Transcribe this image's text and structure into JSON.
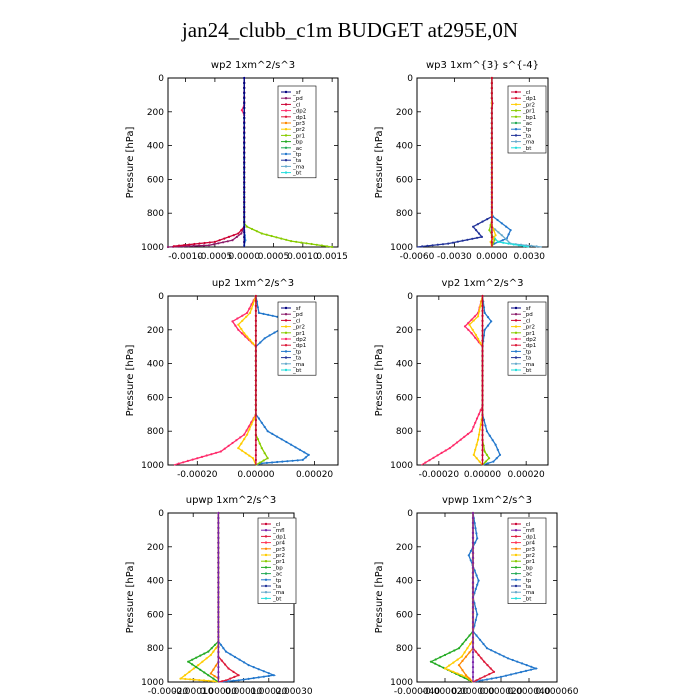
{
  "page": {
    "title": "jan24_clubb_c1m  BUDGET at295E,0N"
  },
  "colors": {
    "_sf": "#000080",
    "_pd": "#8b1a6a",
    "_cl": "#cc0033",
    "_dp2": "#ff2a6a",
    "_dp1": "#dd1a3a",
    "_pr3": "#ff8800",
    "_pr2": "#ffcc00",
    "_pr1": "#88cc00",
    "_bp": "#22aa22",
    "_ac": "#22aa55",
    "_tp": "#2277cc",
    "_ta": "#223399",
    "_ma": "#66aacc",
    "_bt": "#22dddd",
    "_mfl": "#7722aa",
    "_dp3": "#ff1a1a",
    "_pr4": "#ff3355",
    "_bp1": "#88cc00"
  },
  "chart_data": [
    {
      "type": "line",
      "title": "wp2   1xm^2/s^3",
      "ylabel": "Pressure [hPa]",
      "xlim": [
        -0.0013,
        0.0016
      ],
      "ylim": [
        1000,
        0
      ],
      "xticks": [
        -0.001,
        -0.0005,
        0.0,
        0.0005,
        0.001,
        0.0015
      ],
      "xticklabels": [
        "-0.0010",
        "-0.0005",
        "0.0000",
        "0.0005",
        "0.0010",
        "0.0015"
      ],
      "yticks": [
        0,
        200,
        400,
        600,
        800,
        1000
      ],
      "legend": [
        "_sf",
        "_pd",
        "_cl",
        "_dp2",
        "_dp1",
        "_pr3",
        "_pr2",
        "_pr1",
        "_bp",
        "_ac",
        "_tp",
        "_ta",
        "_ma",
        "_bt"
      ],
      "series": [
        {
          "name": "_pd",
          "x": [
            -0.0013,
            -0.0006,
            -0.0002,
            -5e-05,
            0,
            0,
            0
          ],
          "y": [
            1000,
            990,
            960,
            920,
            880,
            500,
            0
          ]
        },
        {
          "name": "_cl",
          "x": [
            -0.0012,
            -0.0005,
            -0.0001,
            0,
            0,
            0
          ],
          "y": [
            995,
            970,
            920,
            880,
            500,
            0
          ]
        },
        {
          "name": "_pr1",
          "x": [
            0.0015,
            0.0008,
            0.0003,
            5e-05,
            0,
            0
          ],
          "y": [
            1000,
            965,
            920,
            880,
            860,
            0
          ]
        },
        {
          "name": "_dp2",
          "x": [
            0,
            0,
            0,
            -4e-05,
            0,
            0,
            0
          ],
          "y": [
            0,
            140,
            160,
            190,
            220,
            260,
            1000
          ]
        },
        {
          "name": "_tp",
          "x": [
            0,
            0,
            0,
            2e-05,
            0,
            0
          ],
          "y": [
            0,
            600,
            900,
            960,
            990,
            1000
          ]
        },
        {
          "name": "_sf",
          "x": [
            0,
            0
          ],
          "y": [
            0,
            1000
          ]
        }
      ]
    },
    {
      "type": "line",
      "title": "wp3   1xm^{3} s^{-4}",
      "ylabel": "Pressure [hPa]",
      "xlim": [
        -0.006,
        0.0045
      ],
      "ylim": [
        1000,
        0
      ],
      "xticks": [
        -0.006,
        -0.003,
        0.0,
        0.003
      ],
      "xticklabels": [
        "-0.0060",
        "-0.0030",
        "0.0000",
        "0.0030"
      ],
      "yticks": [
        0,
        200,
        400,
        600,
        800,
        1000
      ],
      "legend": [
        "_cl",
        "_dp1",
        "_pr2",
        "_pr1",
        "_bp1",
        "_ac",
        "_tp",
        "_ta",
        "_ma",
        "_bt"
      ],
      "series": [
        {
          "name": "_tp",
          "x": [
            0,
            0,
            0.0001,
            0.0015,
            0.0012,
            0.0002,
            0,
            0
          ],
          "y": [
            0,
            800,
            820,
            900,
            950,
            980,
            990,
            1000
          ]
        },
        {
          "name": "_ta",
          "x": [
            0,
            0,
            -0.0015,
            -0.0008,
            -0.0035,
            -0.006
          ],
          "y": [
            0,
            820,
            880,
            940,
            980,
            1000
          ]
        },
        {
          "name": "_ma",
          "x": [
            0,
            0,
            0.0008,
            0.0015,
            0.004
          ],
          "y": [
            0,
            880,
            930,
            980,
            1000
          ]
        },
        {
          "name": "_bt",
          "x": [
            0,
            0,
            0.0005,
            0.003
          ],
          "y": [
            0,
            930,
            970,
            1000
          ]
        },
        {
          "name": "_pr1",
          "x": [
            0,
            0,
            -0.0002,
            0.0002,
            0
          ],
          "y": [
            0,
            840,
            900,
            960,
            1000
          ]
        },
        {
          "name": "_pr2",
          "x": [
            0,
            0,
            0.0003,
            -0.0001,
            0
          ],
          "y": [
            0,
            870,
            930,
            970,
            1000
          ]
        },
        {
          "name": "_cl",
          "x": [
            0,
            0,
            5e-05,
            0,
            0
          ],
          "y": [
            0,
            120,
            150,
            180,
            1000
          ]
        }
      ]
    },
    {
      "type": "line",
      "title": "up2   1xm^2/s^3",
      "ylabel": "Pressure [hPa]",
      "xlim": [
        -0.0003,
        0.00028
      ],
      "ylim": [
        1000,
        0
      ],
      "xticks": [
        -0.0002,
        0.0,
        0.0002
      ],
      "xticklabels": [
        "-0.00020",
        "0.00000",
        "0.00020"
      ],
      "yticks": [
        0,
        200,
        400,
        600,
        800,
        1000
      ],
      "legend": [
        "_sf",
        "_pd",
        "_cl",
        "_pr2",
        "_pr1",
        "_dp2",
        "_dp1",
        "_tp",
        "_ta",
        "_ma",
        "_bt"
      ],
      "series": [
        {
          "name": "_dp2",
          "x": [
            0,
            -3e-05,
            -8e-05,
            -6e-05,
            0,
            0,
            -4e-05,
            -0.00012,
            -0.00028
          ],
          "y": [
            0,
            100,
            150,
            200,
            300,
            700,
            820,
            920,
            1000
          ]
        },
        {
          "name": "_pr2",
          "x": [
            0,
            -2e-05,
            -6e-05,
            -4e-05,
            0,
            0,
            -3e-05,
            -6e-05,
            -1e-05,
            0
          ],
          "y": [
            0,
            100,
            170,
            220,
            300,
            700,
            820,
            900,
            960,
            1000
          ]
        },
        {
          "name": "_tp",
          "x": [
            0,
            1e-05,
            0.00012,
            8e-05,
            3e-05,
            0,
            0,
            4e-05,
            0.00012,
            0.00018,
            0.00016,
            2e-05,
            0
          ],
          "y": [
            0,
            100,
            140,
            200,
            250,
            300,
            700,
            800,
            880,
            940,
            970,
            990,
            1000
          ]
        },
        {
          "name": "_pr1",
          "x": [
            0,
            0,
            2e-05,
            4e-05,
            0
          ],
          "y": [
            0,
            820,
            900,
            960,
            1000
          ]
        },
        {
          "name": "_cl",
          "x": [
            0,
            0
          ],
          "y": [
            0,
            1000
          ]
        }
      ]
    },
    {
      "type": "line",
      "title": "vp2   1xm^2/s^3",
      "ylabel": "Pressure [hPa]",
      "xlim": [
        -0.0003,
        0.0003
      ],
      "ylim": [
        1000,
        0
      ],
      "xticks": [
        -0.0002,
        0.0,
        0.0002
      ],
      "xticklabels": [
        "-0.00020",
        "0.00000",
        "0.00020"
      ],
      "yticks": [
        0,
        200,
        400,
        600,
        800,
        1000
      ],
      "legend": [
        "_sf",
        "_pd",
        "_cl",
        "_pr2",
        "_pr1",
        "_dp2",
        "_dp1",
        "_tp",
        "_ta",
        "_ma",
        "_bt"
      ],
      "series": [
        {
          "name": "_dp2",
          "x": [
            0,
            -2e-05,
            -8e-05,
            -5e-05,
            0,
            0,
            -5e-05,
            -0.00015,
            -0.00028
          ],
          "y": [
            0,
            100,
            180,
            220,
            300,
            650,
            800,
            900,
            1000
          ]
        },
        {
          "name": "_pr2",
          "x": [
            0,
            -2e-05,
            -6e-05,
            -3e-05,
            0,
            0,
            -2e-05,
            -4e-05,
            0
          ],
          "y": [
            0,
            120,
            170,
            230,
            300,
            700,
            850,
            940,
            1000
          ]
        },
        {
          "name": "_tp",
          "x": [
            0,
            1e-05,
            4e-05,
            1e-05,
            0,
            0,
            2e-05,
            6e-05,
            8e-05,
            5e-05,
            0
          ],
          "y": [
            0,
            100,
            150,
            200,
            300,
            700,
            800,
            880,
            940,
            980,
            1000
          ]
        },
        {
          "name": "_pr1",
          "x": [
            0,
            0,
            1e-05,
            3e-05,
            0
          ],
          "y": [
            0,
            850,
            920,
            960,
            1000
          ]
        },
        {
          "name": "_cl",
          "x": [
            0,
            0
          ],
          "y": [
            0,
            1000
          ]
        }
      ]
    },
    {
      "type": "line",
      "title": "upwp   1xm^2/s^3",
      "ylabel": "Pressure [hPa]",
      "xlim": [
        -0.0002,
        0.0003
      ],
      "ylim": [
        1000,
        0
      ],
      "xticks": [
        -0.0002,
        -0.0001,
        0.0,
        0.0001,
        0.0002,
        0.0003
      ],
      "xticklabels": [
        "-0.00020",
        "-0.00010",
        "0.00000",
        "0.00010",
        "0.00020",
        "0.00030"
      ],
      "yticks": [
        0,
        200,
        400,
        600,
        800,
        1000
      ],
      "legend": [
        "_cl",
        "_mfl",
        "_dp1",
        "_pr4",
        "_pr3",
        "_pr2",
        "_pr1",
        "_bp",
        "_ac",
        "_tp",
        "_ta",
        "_ma",
        "_bt"
      ],
      "series": [
        {
          "name": "_pr2",
          "x": [
            0,
            0,
            -3e-05,
            -8e-05,
            -0.00015,
            -2e-05,
            0
          ],
          "y": [
            0,
            780,
            840,
            900,
            980,
            995,
            1000
          ]
        },
        {
          "name": "_bp",
          "x": [
            0,
            0,
            -4e-05,
            -0.00012,
            -4e-05,
            0
          ],
          "y": [
            0,
            760,
            820,
            880,
            960,
            1000
          ]
        },
        {
          "name": "_tp",
          "x": [
            0,
            0,
            3e-05,
            0.00012,
            0.00022,
            8e-05,
            0
          ],
          "y": [
            0,
            760,
            820,
            900,
            960,
            990,
            1000
          ]
        },
        {
          "name": "_dp1",
          "x": [
            0,
            0,
            4e-05,
            8e-05,
            3e-05,
            0
          ],
          "y": [
            0,
            850,
            920,
            960,
            990,
            1000
          ]
        },
        {
          "name": "_pr3",
          "x": [
            0,
            0,
            -3e-05,
            0,
            0
          ],
          "y": [
            0,
            880,
            950,
            980,
            1000
          ]
        },
        {
          "name": "_mfl",
          "x": [
            0,
            0
          ],
          "y": [
            0,
            1000
          ]
        }
      ]
    },
    {
      "type": "line",
      "title": "vpwp   1xm^2/s^3",
      "ylabel": "Pressure [hPa]",
      "xlim": [
        -4e-05,
        6e-05
      ],
      "ylim": [
        1000,
        0
      ],
      "xticks": [
        -4e-05,
        -2e-05,
        0.0,
        2e-05,
        4e-05,
        6e-05
      ],
      "xticklabels": [
        "-0.000040",
        "-0.000020",
        "0.000000",
        "0.000020",
        "0.000040",
        "0.000060"
      ],
      "yticks": [
        0,
        200,
        400,
        600,
        800,
        1000
      ],
      "legend": [
        "_cl",
        "_mfl",
        "_dp1",
        "_pr4",
        "_pr3",
        "_pr2",
        "_pr1",
        "_bp",
        "_ac",
        "_tp",
        "_ta",
        "_ma",
        "_bt"
      ],
      "series": [
        {
          "name": "_tp",
          "x": [
            0,
            3e-06,
            -3e-06,
            4e-06,
            0,
            3e-06,
            0,
            1e-05,
            2.5e-05,
            4.5e-05,
            2e-05,
            0
          ],
          "y": [
            0,
            150,
            250,
            400,
            500,
            600,
            700,
            800,
            860,
            920,
            970,
            1000
          ]
        },
        {
          "name": "_bp",
          "x": [
            0,
            0,
            -1e-05,
            -3e-05,
            -1.5e-05,
            0
          ],
          "y": [
            0,
            700,
            800,
            880,
            940,
            1000
          ]
        },
        {
          "name": "_pr2",
          "x": [
            0,
            0,
            -8e-06,
            -2e-05,
            -5e-06,
            0
          ],
          "y": [
            0,
            750,
            850,
            920,
            970,
            1000
          ]
        },
        {
          "name": "_dp1",
          "x": [
            0,
            0,
            8e-06,
            1.5e-05,
            5e-06,
            0
          ],
          "y": [
            0,
            800,
            880,
            940,
            980,
            1000
          ]
        },
        {
          "name": "_pr3",
          "x": [
            0,
            0,
            -1e-05,
            -5e-06,
            0
          ],
          "y": [
            0,
            800,
            900,
            960,
            1000
          ]
        },
        {
          "name": "_mfl",
          "x": [
            0,
            0
          ],
          "y": [
            0,
            1000
          ]
        }
      ]
    }
  ]
}
